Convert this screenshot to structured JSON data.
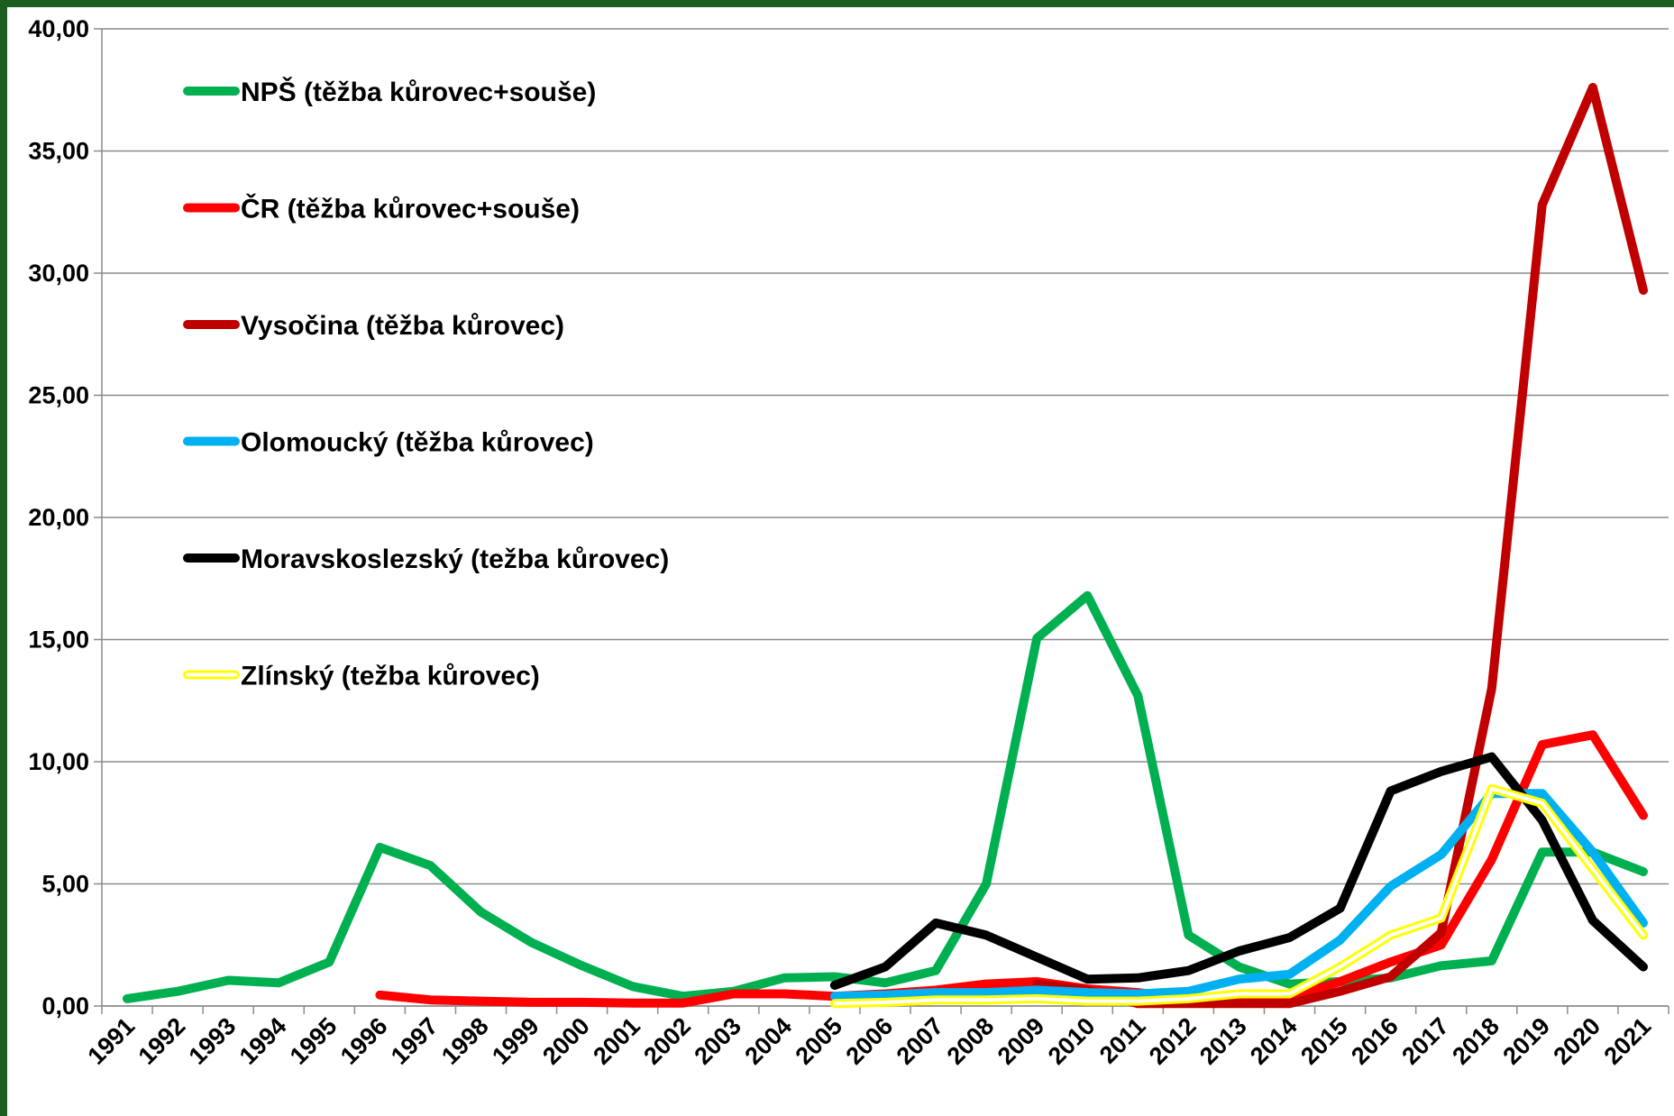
{
  "chart_data": {
    "type": "line",
    "title": "",
    "xlabel": "",
    "ylabel": "",
    "ylim": [
      0,
      40
    ],
    "yticks": [
      "0,00",
      "5,00",
      "10,00",
      "15,00",
      "20,00",
      "25,00",
      "30,00",
      "35,00",
      "40,00"
    ],
    "categories": [
      "1991",
      "1992",
      "1993",
      "1994",
      "1995",
      "1996",
      "1997",
      "1998",
      "1999",
      "2000",
      "2001",
      "2002",
      "2003",
      "2004",
      "2005",
      "2006",
      "2007",
      "2008",
      "2009",
      "2010",
      "2011",
      "2012",
      "2013",
      "2014",
      "2015",
      "2016",
      "2017",
      "2018",
      "2019",
      "2020",
      "2021"
    ],
    "grid": true,
    "legend_position": "top-left",
    "series": [
      {
        "name": "NPŠ (těžba kůrovec+souše)",
        "color": "#00b050",
        "style": "solid",
        "values": [
          0.3,
          0.6,
          1.05,
          0.95,
          1.8,
          6.5,
          5.75,
          3.85,
          2.6,
          1.65,
          0.8,
          0.4,
          0.6,
          1.15,
          1.2,
          0.95,
          1.45,
          5.0,
          15.05,
          16.8,
          12.7,
          2.9,
          1.6,
          0.9,
          1.0,
          1.15,
          1.65,
          1.85,
          6.3,
          6.3,
          5.5
        ]
      },
      {
        "name": "ČR (těžba kůrovec+souše)",
        "color": "#ff0000",
        "style": "solid",
        "values": [
          null,
          null,
          null,
          null,
          null,
          0.45,
          0.25,
          0.2,
          0.15,
          0.15,
          0.12,
          0.12,
          0.5,
          0.5,
          0.4,
          0.5,
          0.65,
          0.9,
          1.0,
          0.7,
          0.55,
          0.3,
          0.3,
          0.35,
          1.0,
          1.8,
          2.5,
          6.0,
          10.7,
          11.1,
          7.8
        ]
      },
      {
        "name": "Vysočina (těžba kůrovec)",
        "color": "#c00000",
        "style": "solid",
        "values": [
          null,
          null,
          null,
          null,
          null,
          null,
          null,
          null,
          null,
          null,
          null,
          null,
          null,
          null,
          null,
          null,
          null,
          null,
          0.9,
          0.65,
          0.1,
          0.1,
          0.1,
          0.1,
          0.6,
          1.2,
          3.0,
          13.0,
          32.8,
          37.6,
          29.3
        ]
      },
      {
        "name": "Olomoucký  (těžba kůrovec)",
        "color": "#00b0f0",
        "style": "solid",
        "values": [
          null,
          null,
          null,
          null,
          null,
          null,
          null,
          null,
          null,
          null,
          null,
          null,
          null,
          null,
          0.4,
          0.45,
          0.55,
          0.55,
          0.65,
          0.55,
          0.5,
          0.6,
          1.1,
          1.3,
          2.7,
          4.9,
          6.2,
          8.7,
          8.7,
          6.3,
          3.4
        ]
      },
      {
        "name": "Moravskoslezský (težba kůrovec)",
        "color": "#000000",
        "style": "solid",
        "values": [
          null,
          null,
          null,
          null,
          null,
          null,
          null,
          null,
          null,
          null,
          null,
          null,
          null,
          null,
          0.85,
          1.6,
          3.4,
          2.9,
          2.0,
          1.1,
          1.15,
          1.45,
          2.25,
          2.8,
          4.0,
          8.8,
          9.6,
          10.2,
          7.6,
          3.5,
          1.6
        ]
      },
      {
        "name": "Zlínský  (težba kůrovec)",
        "color": "#ffff00",
        "style": "outline",
        "values": [
          null,
          null,
          null,
          null,
          null,
          null,
          null,
          null,
          null,
          null,
          null,
          null,
          null,
          null,
          0.1,
          0.15,
          0.25,
          0.25,
          0.3,
          0.2,
          0.2,
          0.3,
          0.5,
          0.5,
          1.6,
          2.9,
          3.6,
          8.9,
          8.3,
          5.6,
          2.9
        ]
      }
    ]
  }
}
